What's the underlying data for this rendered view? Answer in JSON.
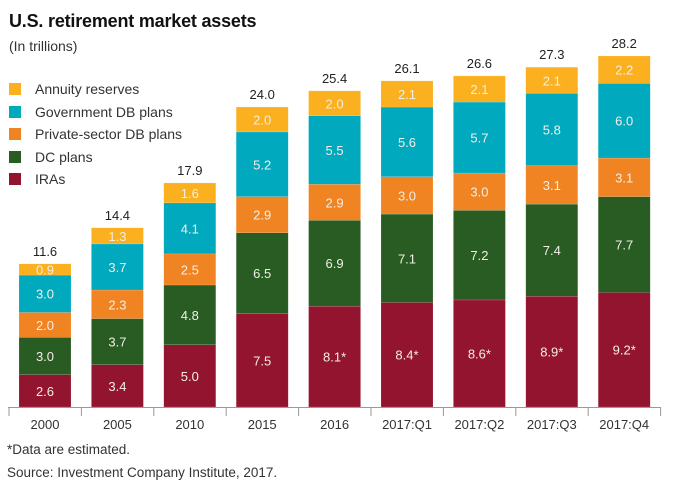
{
  "chart_data": {
    "type": "bar",
    "stacked": true,
    "title": "U.S. retirement market assets",
    "subtitle": "(In trillions)",
    "xlabel": "",
    "ylabel": "",
    "ylim": [
      0,
      28.2
    ],
    "grid": false,
    "legend_placement": "top-left",
    "categories": [
      "2000",
      "2005",
      "2010",
      "2015",
      "2016",
      "2017:Q1",
      "2017:Q2",
      "2017:Q3",
      "2017:Q4"
    ],
    "totals": [
      11.6,
      14.4,
      17.9,
      24.0,
      25.4,
      26.1,
      26.6,
      27.3,
      28.2
    ],
    "total_labels": [
      "11.6",
      "14.4",
      "17.9",
      "24.0",
      "25.4",
      "26.1",
      "26.6",
      "27.3",
      "28.2"
    ],
    "series": [
      {
        "name": "IRAs",
        "color": "#93142e",
        "values": [
          2.6,
          3.4,
          5.0,
          7.5,
          8.1,
          8.4,
          8.6,
          8.9,
          9.2
        ],
        "labels": [
          "2.6",
          "3.4",
          "5.0",
          "7.5",
          "8.1*",
          "8.4*",
          "8.6*",
          "8.9*",
          "9.2*"
        ]
      },
      {
        "name": "DC plans",
        "color": "#285c22",
        "values": [
          3.0,
          3.7,
          4.8,
          6.5,
          6.9,
          7.1,
          7.2,
          7.4,
          7.7
        ],
        "labels": [
          "3.0",
          "3.7",
          "4.8",
          "6.5",
          "6.9",
          "7.1",
          "7.2",
          "7.4",
          "7.7"
        ]
      },
      {
        "name": "Private-sector DB plans",
        "color": "#f08423",
        "values": [
          2.0,
          2.3,
          2.5,
          2.9,
          2.9,
          3.0,
          3.0,
          3.1,
          3.1
        ],
        "labels": [
          "2.0",
          "2.3",
          "2.5",
          "2.9",
          "2.9",
          "3.0",
          "3.0",
          "3.1",
          "3.1"
        ]
      },
      {
        "name": "Government DB plans",
        "color": "#00a9be",
        "values": [
          3.0,
          3.7,
          4.1,
          5.2,
          5.5,
          5.6,
          5.7,
          5.8,
          6.0
        ],
        "labels": [
          "3.0",
          "3.7",
          "4.1",
          "5.2",
          "5.5",
          "5.6",
          "5.7",
          "5.8",
          "6.0"
        ]
      },
      {
        "name": "Annuity reserves",
        "color": "#fbb01f",
        "values": [
          0.9,
          1.3,
          1.6,
          2.0,
          2.0,
          2.1,
          2.1,
          2.1,
          2.2
        ],
        "labels": [
          "0.9",
          "1.3",
          "1.6",
          "2.0",
          "2.0",
          "2.1",
          "2.1",
          "2.1",
          "2.2"
        ]
      }
    ],
    "legend_order": [
      "Annuity reserves",
      "Government DB plans",
      "Private-sector DB plans",
      "DC plans",
      "IRAs"
    ],
    "footnote": "*Data are estimated.",
    "source": "Source: Investment Company Institute, 2017."
  },
  "colors": {
    "axis": "#999999",
    "segment_text": "#f2eee6",
    "total_text": "#222222",
    "tick_text": "#333333"
  }
}
